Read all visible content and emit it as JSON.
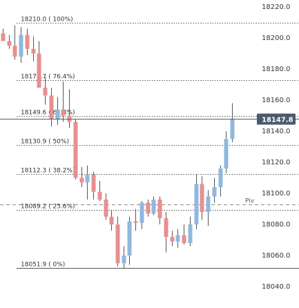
{
  "chart_data": {
    "type": "candlestick",
    "title": "",
    "xlabel": "",
    "ylabel": "",
    "ylim": [
      18038,
      18222
    ],
    "y_ticks": [
      18220.0,
      18200.0,
      18180.0,
      18160.0,
      18140.0,
      18120.0,
      18100.0,
      18080.0,
      18060.0,
      18040.0
    ],
    "y_tick_labels": [
      "18220.0",
      "18200.0",
      "18180.0",
      "18160.0",
      "18140.0",
      "18120.0",
      "18100.0",
      "18080.0",
      "18060.0",
      "18040.0"
    ],
    "current_price": {
      "value": 18147.8,
      "label": "18147.8",
      "color": "#4a5a6e"
    },
    "fibonacci_levels": [
      {
        "label": "18210.0 ( 100%)",
        "value": 18210.0,
        "style": "dotted"
      },
      {
        "label": "18172.7 ( 76.4%)",
        "value": 18172.7,
        "style": "dotted"
      },
      {
        "label": "18149.6 ( 61.8%)",
        "value": 18149.6,
        "style": "dotted"
      },
      {
        "label": "18130.9 ( 50%)",
        "value": 18130.9,
        "style": "dotted"
      },
      {
        "label": "18112.3 ( 38.2%)",
        "value": 18112.3,
        "style": "dotted"
      },
      {
        "label": "18089.2 ( 23.6%)",
        "value": 18089.2,
        "style": "dotted"
      },
      {
        "label": "18051.9 ( 0%)",
        "value": 18051.9,
        "style": "solid"
      }
    ],
    "pivot": {
      "label": "Piv",
      "value": 18093.0
    },
    "colors": {
      "up": "#8fb8dc",
      "down": "#e88f8f",
      "wick": "#555555",
      "grid": "#555555",
      "price_line": "#4a5a6e"
    },
    "candles": [
      {
        "open": 18203,
        "high": 18206,
        "low": 18198,
        "close": 18198
      },
      {
        "open": 18198,
        "high": 18202,
        "low": 18193,
        "close": 18195
      },
      {
        "open": 18195,
        "high": 18208,
        "low": 18186,
        "close": 18188
      },
      {
        "open": 18188,
        "high": 18207,
        "low": 18184,
        "close": 18202
      },
      {
        "open": 18202,
        "high": 18206,
        "low": 18189,
        "close": 18193
      },
      {
        "open": 18193,
        "high": 18201,
        "low": 18185,
        "close": 18190
      },
      {
        "open": 18190,
        "high": 18198,
        "low": 18168,
        "close": 18168
      },
      {
        "open": 18168,
        "high": 18175,
        "low": 18157,
        "close": 18163
      },
      {
        "open": 18163,
        "high": 18168,
        "low": 18143,
        "close": 18148
      },
      {
        "open": 18148,
        "high": 18162,
        "low": 18144,
        "close": 18154
      },
      {
        "open": 18154,
        "high": 18172,
        "low": 18146,
        "close": 18150
      },
      {
        "open": 18150,
        "high": 18167,
        "low": 18142,
        "close": 18146
      },
      {
        "open": 18146,
        "high": 18148,
        "low": 18109,
        "close": 18110
      },
      {
        "open": 18110,
        "high": 18117,
        "low": 18104,
        "close": 18107
      },
      {
        "open": 18107,
        "high": 18118,
        "low": 18096,
        "close": 18112
      },
      {
        "open": 18112,
        "high": 18114,
        "low": 18096,
        "close": 18101
      },
      {
        "open": 18101,
        "high": 18108,
        "low": 18095,
        "close": 18096
      },
      {
        "open": 18096,
        "high": 18100,
        "low": 18083,
        "close": 18085
      },
      {
        "open": 18085,
        "high": 18089,
        "low": 18076,
        "close": 18080
      },
      {
        "open": 18080,
        "high": 18085,
        "low": 18053,
        "close": 18055
      },
      {
        "open": 18055,
        "high": 18066,
        "low": 18052,
        "close": 18060
      },
      {
        "open": 18060,
        "high": 18085,
        "low": 18054,
        "close": 18082
      },
      {
        "open": 18082,
        "high": 18090,
        "low": 18076,
        "close": 18081
      },
      {
        "open": 18081,
        "high": 18095,
        "low": 18077,
        "close": 18094
      },
      {
        "open": 18094,
        "high": 18096,
        "low": 18085,
        "close": 18087
      },
      {
        "open": 18087,
        "high": 18098,
        "low": 18086,
        "close": 18096
      },
      {
        "open": 18096,
        "high": 18098,
        "low": 18080,
        "close": 18084
      },
      {
        "open": 18084,
        "high": 18088,
        "low": 18062,
        "close": 18072
      },
      {
        "open": 18072,
        "high": 18076,
        "low": 18066,
        "close": 18069
      },
      {
        "open": 18069,
        "high": 18077,
        "low": 18065,
        "close": 18073
      },
      {
        "open": 18073,
        "high": 18080,
        "low": 18067,
        "close": 18068
      },
      {
        "open": 18068,
        "high": 18085,
        "low": 18066,
        "close": 18080
      },
      {
        "open": 18080,
        "high": 18112,
        "low": 18077,
        "close": 18106
      },
      {
        "open": 18106,
        "high": 18111,
        "low": 18083,
        "close": 18088
      },
      {
        "open": 18088,
        "high": 18102,
        "low": 18079,
        "close": 18098
      },
      {
        "open": 18098,
        "high": 18110,
        "low": 18094,
        "close": 18104
      },
      {
        "open": 18104,
        "high": 18118,
        "low": 18098,
        "close": 18116
      },
      {
        "open": 18116,
        "high": 18140,
        "low": 18113,
        "close": 18135
      },
      {
        "open": 18135,
        "high": 18158,
        "low": 18133,
        "close": 18148
      }
    ]
  }
}
